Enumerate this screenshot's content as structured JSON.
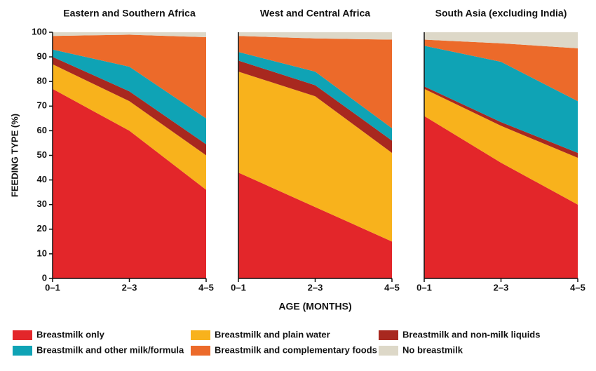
{
  "chart_data": [
    {
      "type": "area",
      "title": "Eastern and Southern Africa",
      "ylabel": "FEEDING TYPE (%)",
      "categories": [
        "0–1",
        "2–3",
        "4–5"
      ],
      "ylim": [
        0,
        100
      ],
      "yticks": [
        0,
        10,
        20,
        30,
        40,
        50,
        60,
        70,
        80,
        90,
        100
      ],
      "series": [
        {
          "name": "Breastmilk only",
          "color": "#e3262a",
          "values": [
            77,
            60,
            36
          ]
        },
        {
          "name": "Breastmilk and plain water",
          "color": "#f8b21c",
          "values": [
            10,
            12,
            14
          ]
        },
        {
          "name": "Breastmilk and non-milk liquids",
          "color": "#a8281f",
          "values": [
            3,
            4,
            4.5
          ]
        },
        {
          "name": "Breastmilk and other milk/formula",
          "color": "#0fa3b5",
          "values": [
            3,
            10,
            10.5
          ]
        },
        {
          "name": "Breastmilk and complementary foods",
          "color": "#ec6a2a",
          "values": [
            5.5,
            13,
            33
          ]
        },
        {
          "name": "No breastmilk",
          "color": "#ddd8c8",
          "values": [
            1.5,
            1,
            2
          ]
        }
      ]
    },
    {
      "type": "area",
      "title": "West and Central Africa",
      "xlabel": "AGE (MONTHS)",
      "categories": [
        "0–1",
        "2–3",
        "4–5"
      ],
      "ylim": [
        0,
        100
      ],
      "series": [
        {
          "name": "Breastmilk only",
          "color": "#e3262a",
          "values": [
            43,
            29,
            15
          ]
        },
        {
          "name": "Breastmilk and plain water",
          "color": "#f8b21c",
          "values": [
            41,
            45,
            36
          ]
        },
        {
          "name": "Breastmilk and non-milk liquids",
          "color": "#a8281f",
          "values": [
            4.5,
            4.5,
            5
          ]
        },
        {
          "name": "Breastmilk and other milk/formula",
          "color": "#0fa3b5",
          "values": [
            3.5,
            5.5,
            5
          ]
        },
        {
          "name": "Breastmilk and complementary foods",
          "color": "#ec6a2a",
          "values": [
            6.5,
            13.5,
            36
          ]
        },
        {
          "name": "No breastmilk",
          "color": "#ddd8c8",
          "values": [
            1.5,
            2.5,
            3
          ]
        }
      ]
    },
    {
      "type": "area",
      "title": "South Asia (excluding India)",
      "categories": [
        "0–1",
        "2–3",
        "4–5"
      ],
      "ylim": [
        0,
        100
      ],
      "series": [
        {
          "name": "Breastmilk only",
          "color": "#e3262a",
          "values": [
            66,
            47,
            30
          ]
        },
        {
          "name": "Breastmilk and plain water",
          "color": "#f8b21c",
          "values": [
            11,
            15,
            19
          ]
        },
        {
          "name": "Breastmilk and non-milk liquids",
          "color": "#a8281f",
          "values": [
            1,
            1.5,
            2
          ]
        },
        {
          "name": "Breastmilk and other milk/formula",
          "color": "#0fa3b5",
          "values": [
            16.5,
            24.5,
            21
          ]
        },
        {
          "name": "Breastmilk and complementary foods",
          "color": "#ec6a2a",
          "values": [
            2.5,
            7.5,
            21.5
          ]
        },
        {
          "name": "No breastmilk",
          "color": "#ddd8c8",
          "values": [
            3,
            4.5,
            6.5
          ]
        }
      ]
    }
  ]
}
